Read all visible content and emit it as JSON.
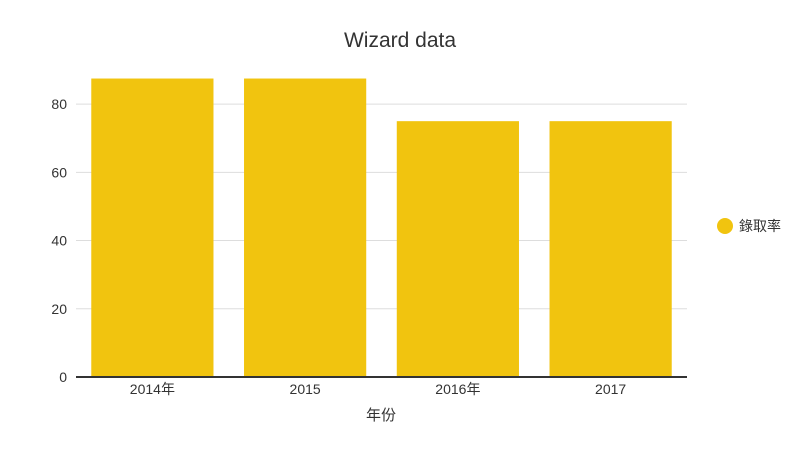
{
  "chart_data": {
    "type": "bar",
    "title": "Wizard data",
    "xlabel": "年份",
    "ylabel": "",
    "categories": [
      "2014年",
      "2015",
      "2016年",
      "2017"
    ],
    "series": [
      {
        "name": "錄取率",
        "values": [
          87.5,
          87.5,
          75,
          75
        ],
        "color": "#f1c40f"
      }
    ],
    "ylim": [
      0,
      90
    ],
    "yticks": [
      0,
      20,
      40,
      60,
      80
    ],
    "grid": true,
    "legend_position": "right"
  }
}
